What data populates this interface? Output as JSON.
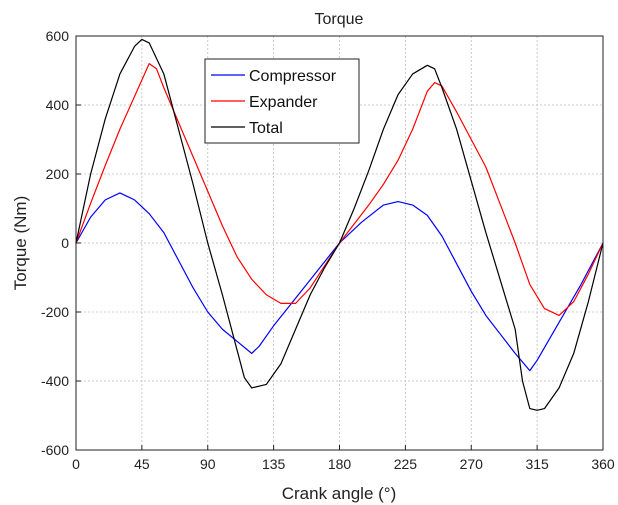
{
  "chart_data": {
    "type": "line",
    "title": "Torque",
    "xlabel": "Crank angle (°)",
    "ylabel": "Torque (Nm)",
    "xlim": [
      0,
      360
    ],
    "ylim": [
      -600,
      600
    ],
    "xticks": [
      0,
      45,
      90,
      135,
      180,
      225,
      270,
      315,
      360
    ],
    "yticks": [
      -600,
      -400,
      -200,
      0,
      200,
      400,
      600
    ],
    "grid": true,
    "legend_position": "top-center",
    "series": [
      {
        "name": "Compressor",
        "color": "#0000ff",
        "points": [
          [
            0,
            0
          ],
          [
            10,
            75
          ],
          [
            20,
            125
          ],
          [
            30,
            145
          ],
          [
            40,
            125
          ],
          [
            50,
            85
          ],
          [
            60,
            30
          ],
          [
            70,
            -50
          ],
          [
            80,
            -130
          ],
          [
            90,
            -200
          ],
          [
            100,
            -250
          ],
          [
            110,
            -285
          ],
          [
            120,
            -320
          ],
          [
            125,
            -300
          ],
          [
            135,
            -240
          ],
          [
            150,
            -160
          ],
          [
            165,
            -80
          ],
          [
            180,
            0
          ],
          [
            195,
            60
          ],
          [
            210,
            110
          ],
          [
            220,
            120
          ],
          [
            230,
            110
          ],
          [
            240,
            80
          ],
          [
            250,
            20
          ],
          [
            260,
            -60
          ],
          [
            270,
            -140
          ],
          [
            280,
            -210
          ],
          [
            290,
            -265
          ],
          [
            300,
            -320
          ],
          [
            310,
            -370
          ],
          [
            315,
            -340
          ],
          [
            330,
            -230
          ],
          [
            345,
            -120
          ],
          [
            360,
            0
          ]
        ]
      },
      {
        "name": "Expander",
        "color": "#ff0000",
        "points": [
          [
            0,
            0
          ],
          [
            10,
            115
          ],
          [
            20,
            225
          ],
          [
            30,
            330
          ],
          [
            40,
            425
          ],
          [
            50,
            520
          ],
          [
            55,
            505
          ],
          [
            60,
            450
          ],
          [
            70,
            350
          ],
          [
            80,
            250
          ],
          [
            90,
            150
          ],
          [
            100,
            50
          ],
          [
            110,
            -40
          ],
          [
            120,
            -105
          ],
          [
            130,
            -150
          ],
          [
            140,
            -175
          ],
          [
            150,
            -175
          ],
          [
            160,
            -130
          ],
          [
            170,
            -65
          ],
          [
            180,
            0
          ],
          [
            190,
            55
          ],
          [
            200,
            110
          ],
          [
            210,
            170
          ],
          [
            220,
            240
          ],
          [
            230,
            330
          ],
          [
            240,
            440
          ],
          [
            245,
            465
          ],
          [
            250,
            455
          ],
          [
            260,
            380
          ],
          [
            270,
            300
          ],
          [
            280,
            220
          ],
          [
            290,
            110
          ],
          [
            300,
            0
          ],
          [
            310,
            -120
          ],
          [
            320,
            -190
          ],
          [
            330,
            -210
          ],
          [
            340,
            -170
          ],
          [
            350,
            -90
          ],
          [
            360,
            0
          ]
        ]
      },
      {
        "name": "Total",
        "color": "#000000",
        "points": [
          [
            0,
            0
          ],
          [
            10,
            200
          ],
          [
            20,
            360
          ],
          [
            30,
            490
          ],
          [
            40,
            570
          ],
          [
            45,
            590
          ],
          [
            50,
            580
          ],
          [
            60,
            490
          ],
          [
            70,
            330
          ],
          [
            80,
            170
          ],
          [
            90,
            0
          ],
          [
            100,
            -150
          ],
          [
            110,
            -310
          ],
          [
            115,
            -390
          ],
          [
            120,
            -420
          ],
          [
            130,
            -410
          ],
          [
            140,
            -350
          ],
          [
            150,
            -250
          ],
          [
            160,
            -150
          ],
          [
            170,
            -70
          ],
          [
            180,
            0
          ],
          [
            190,
            100
          ],
          [
            200,
            210
          ],
          [
            210,
            330
          ],
          [
            220,
            430
          ],
          [
            230,
            490
          ],
          [
            240,
            515
          ],
          [
            245,
            505
          ],
          [
            250,
            450
          ],
          [
            260,
            330
          ],
          [
            270,
            180
          ],
          [
            280,
            30
          ],
          [
            290,
            -110
          ],
          [
            300,
            -250
          ],
          [
            305,
            -400
          ],
          [
            310,
            -480
          ],
          [
            315,
            -485
          ],
          [
            320,
            -480
          ],
          [
            330,
            -420
          ],
          [
            340,
            -320
          ],
          [
            350,
            -170
          ],
          [
            360,
            0
          ]
        ]
      }
    ]
  }
}
